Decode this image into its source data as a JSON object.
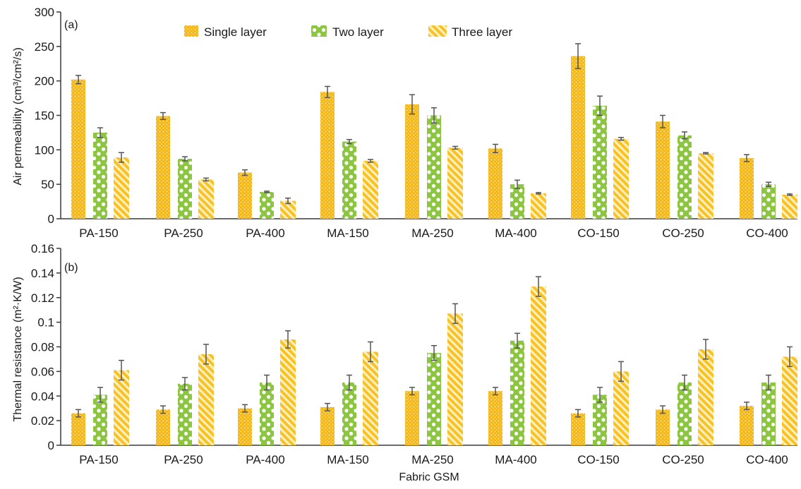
{
  "chart_data": [
    {
      "panel_label": "(a)",
      "type": "bar",
      "ylabel": "Air permeability (cm³/cm²/s)",
      "xlabel": "",
      "ylim": [
        0,
        300
      ],
      "yticks": [
        0,
        50,
        100,
        150,
        200,
        250,
        300
      ],
      "categories": [
        "PA-150",
        "PA-250",
        "PA-400",
        "MA-150",
        "MA-250",
        "MA-400",
        "CO-150",
        "CO-250",
        "CO-400"
      ],
      "legend_position": "top",
      "series": [
        {
          "name": "Single layer",
          "values": [
            202,
            149,
            67,
            184,
            166,
            102,
            236,
            141,
            88
          ],
          "errors": [
            6,
            5,
            4,
            8,
            14,
            6,
            18,
            9,
            5
          ]
        },
        {
          "name": "Two layer",
          "values": [
            125,
            87,
            39,
            112,
            150,
            50,
            164,
            121,
            50
          ],
          "errors": [
            7,
            3,
            1,
            3,
            11,
            6,
            14,
            5,
            3
          ]
        },
        {
          "name": "Three layer",
          "values": [
            89,
            57,
            26,
            84,
            103,
            37,
            116,
            95,
            35
          ],
          "errors": [
            7,
            2,
            4,
            2,
            2,
            1,
            2,
            1,
            1
          ]
        }
      ],
      "grid": false
    },
    {
      "panel_label": "(b)",
      "type": "bar",
      "ylabel": "Thermal resistance (m²·K/W)",
      "xlabel": "Fabric GSM",
      "ylim": [
        0,
        0.16
      ],
      "yticks": [
        "0",
        "0.02",
        "0.04",
        "0.06",
        "0.08",
        "0.1",
        "0.12",
        "0.14",
        "0.16"
      ],
      "categories": [
        "PA-150",
        "PA-250",
        "PA-400",
        "MA-150",
        "MA-250",
        "MA-400",
        "CO-150",
        "CO-250",
        "CO-400"
      ],
      "series": [
        {
          "name": "Single layer",
          "values": [
            0.026,
            0.029,
            0.03,
            0.031,
            0.044,
            0.044,
            0.026,
            0.029,
            0.032
          ],
          "errors": [
            0.003,
            0.003,
            0.003,
            0.003,
            0.003,
            0.003,
            0.003,
            0.003,
            0.003
          ]
        },
        {
          "name": "Two layer",
          "values": [
            0.041,
            0.05,
            0.051,
            0.051,
            0.075,
            0.085,
            0.041,
            0.051,
            0.051
          ],
          "errors": [
            0.006,
            0.005,
            0.006,
            0.006,
            0.006,
            0.006,
            0.006,
            0.006,
            0.006
          ]
        },
        {
          "name": "Three layer",
          "values": [
            0.061,
            0.074,
            0.086,
            0.076,
            0.107,
            0.129,
            0.06,
            0.078,
            0.072
          ],
          "errors": [
            0.008,
            0.008,
            0.007,
            0.008,
            0.008,
            0.008,
            0.008,
            0.008,
            0.008
          ]
        }
      ],
      "grid": false
    }
  ],
  "colors": {
    "single": "#f3b614",
    "single_dot": "#fce59a",
    "two": "#8cc641",
    "two_dot": "#ffffff",
    "three": "#f8c227",
    "three_dot": "#fff1c2",
    "axis": "#3a3a3a",
    "error": "#555555"
  }
}
